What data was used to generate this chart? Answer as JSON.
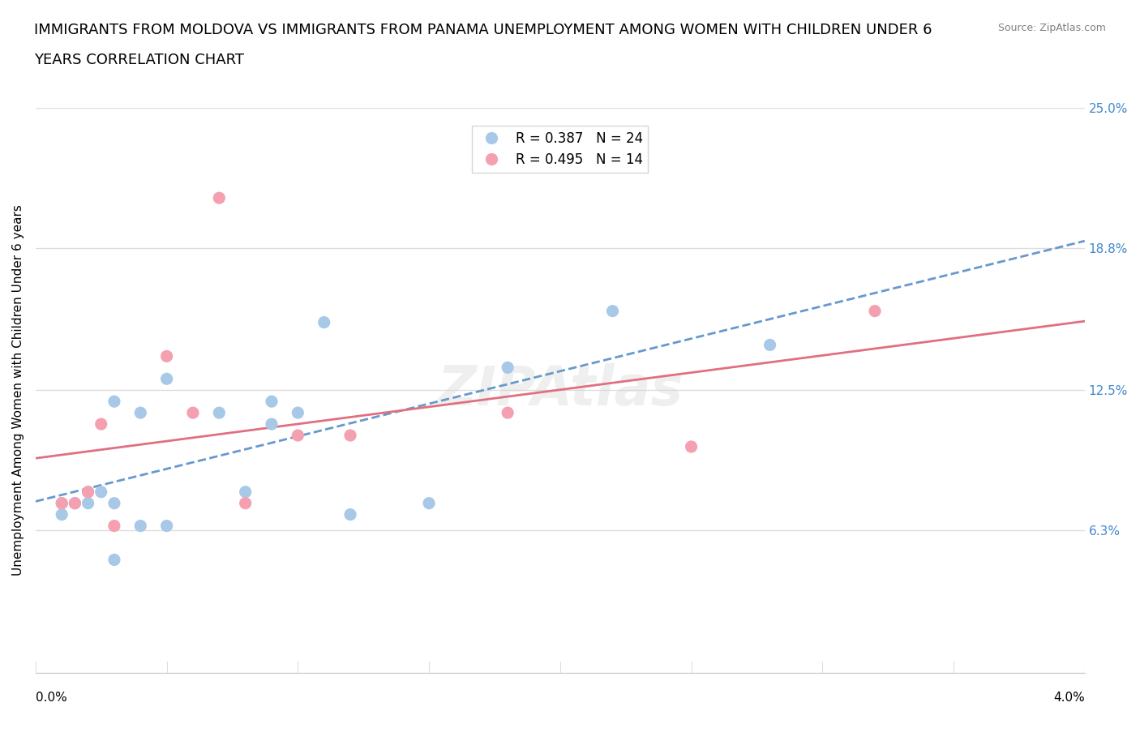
{
  "title_line1": "IMMIGRANTS FROM MOLDOVA VS IMMIGRANTS FROM PANAMA UNEMPLOYMENT AMONG WOMEN WITH CHILDREN UNDER 6",
  "title_line2": "YEARS CORRELATION CHART",
  "source": "Source: ZipAtlas.com",
  "xlabel": "",
  "ylabel": "Unemployment Among Women with Children Under 6 years",
  "xlim": [
    0.0,
    0.04
  ],
  "ylim": [
    0.0,
    0.25
  ],
  "x_ticks": [
    0.0,
    0.005,
    0.01,
    0.015,
    0.02,
    0.025,
    0.03,
    0.035,
    0.04
  ],
  "y_ticks_right": [
    0.0,
    0.063,
    0.125,
    0.188,
    0.25
  ],
  "y_tick_labels_right": [
    "",
    "6.3%",
    "12.5%",
    "18.8%",
    "25.0%"
  ],
  "moldova_R": 0.387,
  "moldova_N": 24,
  "panama_R": 0.495,
  "panama_N": 14,
  "moldova_color": "#a8c8e8",
  "panama_color": "#f4a0b0",
  "moldova_line_color": "#6699cc",
  "panama_line_color": "#e07080",
  "legend_moldova_fill": "#a8c8e8",
  "legend_panama_fill": "#f4a0b0",
  "watermark": "ZIPAtlas",
  "moldova_x": [
    0.001,
    0.001,
    0.0015,
    0.002,
    0.002,
    0.0025,
    0.003,
    0.003,
    0.003,
    0.004,
    0.004,
    0.005,
    0.005,
    0.007,
    0.008,
    0.009,
    0.009,
    0.01,
    0.011,
    0.012,
    0.015,
    0.018,
    0.022,
    0.028
  ],
  "moldova_y": [
    0.07,
    0.075,
    0.075,
    0.075,
    0.08,
    0.08,
    0.05,
    0.075,
    0.12,
    0.065,
    0.115,
    0.065,
    0.13,
    0.115,
    0.08,
    0.12,
    0.11,
    0.115,
    0.155,
    0.07,
    0.075,
    0.135,
    0.16,
    0.145
  ],
  "panama_x": [
    0.001,
    0.0015,
    0.002,
    0.0025,
    0.003,
    0.005,
    0.006,
    0.007,
    0.008,
    0.01,
    0.012,
    0.018,
    0.025,
    0.032
  ],
  "panama_y": [
    0.075,
    0.075,
    0.08,
    0.11,
    0.065,
    0.14,
    0.115,
    0.21,
    0.075,
    0.105,
    0.105,
    0.115,
    0.1,
    0.16
  ],
  "title_fontsize": 13,
  "axis_label_fontsize": 11,
  "tick_fontsize": 11,
  "legend_fontsize": 12,
  "background_color": "#ffffff",
  "grid_color": "#dddddd",
  "right_tick_color": "#4488cc"
}
